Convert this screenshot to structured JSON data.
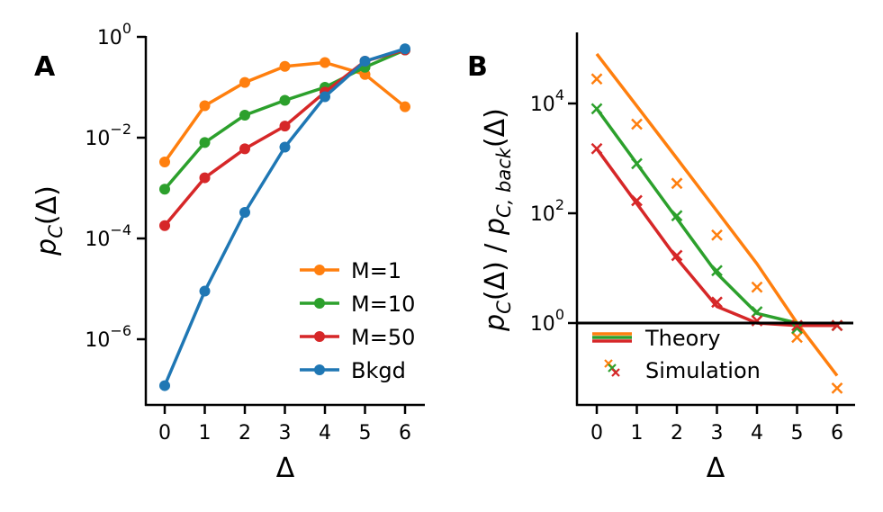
{
  "colors": {
    "orange": "#ff7f0e",
    "green": "#2ca02c",
    "red": "#d62728",
    "blue": "#1f77b4",
    "black": "#000000"
  },
  "chart_data": [
    {
      "panel": "A",
      "type": "line",
      "yscale": "log",
      "xlabel": "Δ",
      "ylabel": "p_C(Δ)",
      "x": [
        0,
        1,
        2,
        3,
        4,
        5,
        6
      ],
      "xticks": [
        "0",
        "1",
        "2",
        "3",
        "4",
        "5",
        "6"
      ],
      "yticks": [
        {
          "base": "10",
          "exp": "0"
        },
        {
          "base": "10",
          "exp": "−2"
        },
        {
          "base": "10",
          "exp": "−4"
        },
        {
          "base": "10",
          "exp": "−6"
        }
      ],
      "ylim": [
        3e-08,
        1.5
      ],
      "legend_position": "lower-right",
      "grid": false,
      "series": [
        {
          "name": "M=1",
          "color": "#ff7f0e",
          "values": [
            0.0033,
            0.043,
            0.125,
            0.26,
            0.31,
            0.18,
            0.041
          ]
        },
        {
          "name": "M=10",
          "color": "#2ca02c",
          "values": [
            0.00095,
            0.008,
            0.028,
            0.055,
            0.1,
            0.25,
            0.55
          ]
        },
        {
          "name": "M=50",
          "color": "#d62728",
          "values": [
            0.00018,
            0.0016,
            0.006,
            0.017,
            0.08,
            0.33,
            0.55
          ]
        },
        {
          "name": "Bkgd",
          "color": "#1f77b4",
          "values": [
            1.2e-07,
            9e-06,
            0.00033,
            0.0065,
            0.065,
            0.33,
            0.58
          ]
        }
      ]
    },
    {
      "panel": "B",
      "type": "line",
      "yscale": "log",
      "xlabel": "Δ",
      "ylabel": "p_C(Δ) / p_C,back(Δ)",
      "x": [
        0,
        1,
        2,
        3,
        4,
        5,
        6
      ],
      "xticks": [
        "0",
        "1",
        "2",
        "3",
        "4",
        "5",
        "6"
      ],
      "yticks": [
        {
          "base": "10",
          "exp": "4"
        },
        {
          "base": "10",
          "exp": "2"
        },
        {
          "base": "10",
          "exp": "0"
        }
      ],
      "ylim": [
        0.03,
        200000
      ],
      "reference_line": 1,
      "legend_position": "lower-left",
      "legend": [
        "Theory",
        "Simulation"
      ],
      "grid": false,
      "theory": [
        {
          "color": "#ff7f0e",
          "values": [
            80000,
            9000,
            1000,
            110,
            12,
            1.0,
            0.11
          ]
        },
        {
          "color": "#2ca02c",
          "values": [
            8000,
            800,
            80,
            8,
            1.5,
            1.0,
            0.9
          ]
        },
        {
          "color": "#d62728",
          "values": [
            1500,
            150,
            15,
            2.0,
            1.0,
            0.9,
            0.9
          ]
        }
      ],
      "simulation": [
        {
          "color": "#ff7f0e",
          "values": [
            28000,
            4200,
            350,
            40,
            4.5,
            0.55,
            0.065
          ]
        },
        {
          "color": "#2ca02c",
          "values": [
            8000,
            800,
            90,
            9,
            1.6,
            0.8,
            0.9
          ]
        },
        {
          "color": "#d62728",
          "values": [
            1500,
            170,
            17,
            2.4,
            1.1,
            0.9,
            0.9
          ]
        }
      ]
    }
  ]
}
